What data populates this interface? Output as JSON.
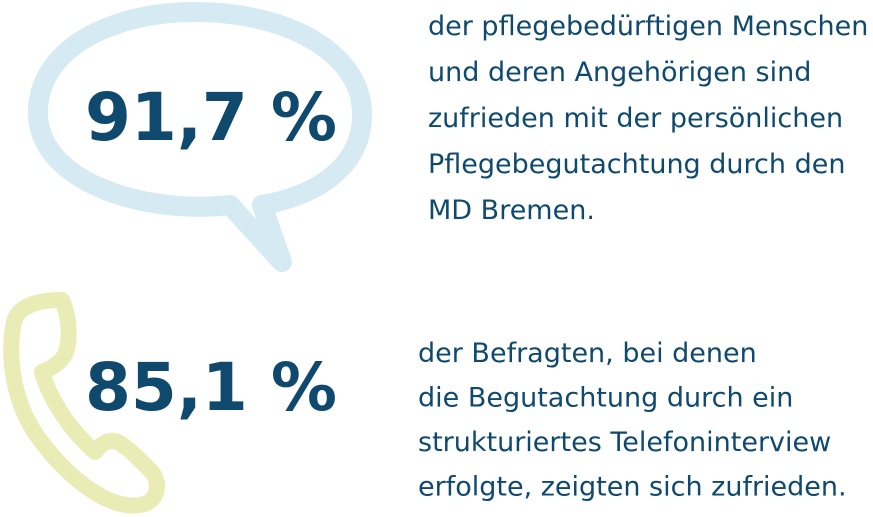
{
  "stats": [
    {
      "value": "91,7 %",
      "lines": [
        "der pflegebedürftigen Menschen",
        "und deren Angehörigen sind",
        "zufrieden mit der persönlichen",
        "Pflegebegutachtung durch den",
        "MD Bremen."
      ]
    },
    {
      "value": "85,1 %",
      "lines": [
        "der Befragten, bei denen",
        "die Begutachtung durch ein",
        "strukturiertes Telefoninterview",
        "erfolgte, zeigten sich zufrieden."
      ]
    }
  ]
}
